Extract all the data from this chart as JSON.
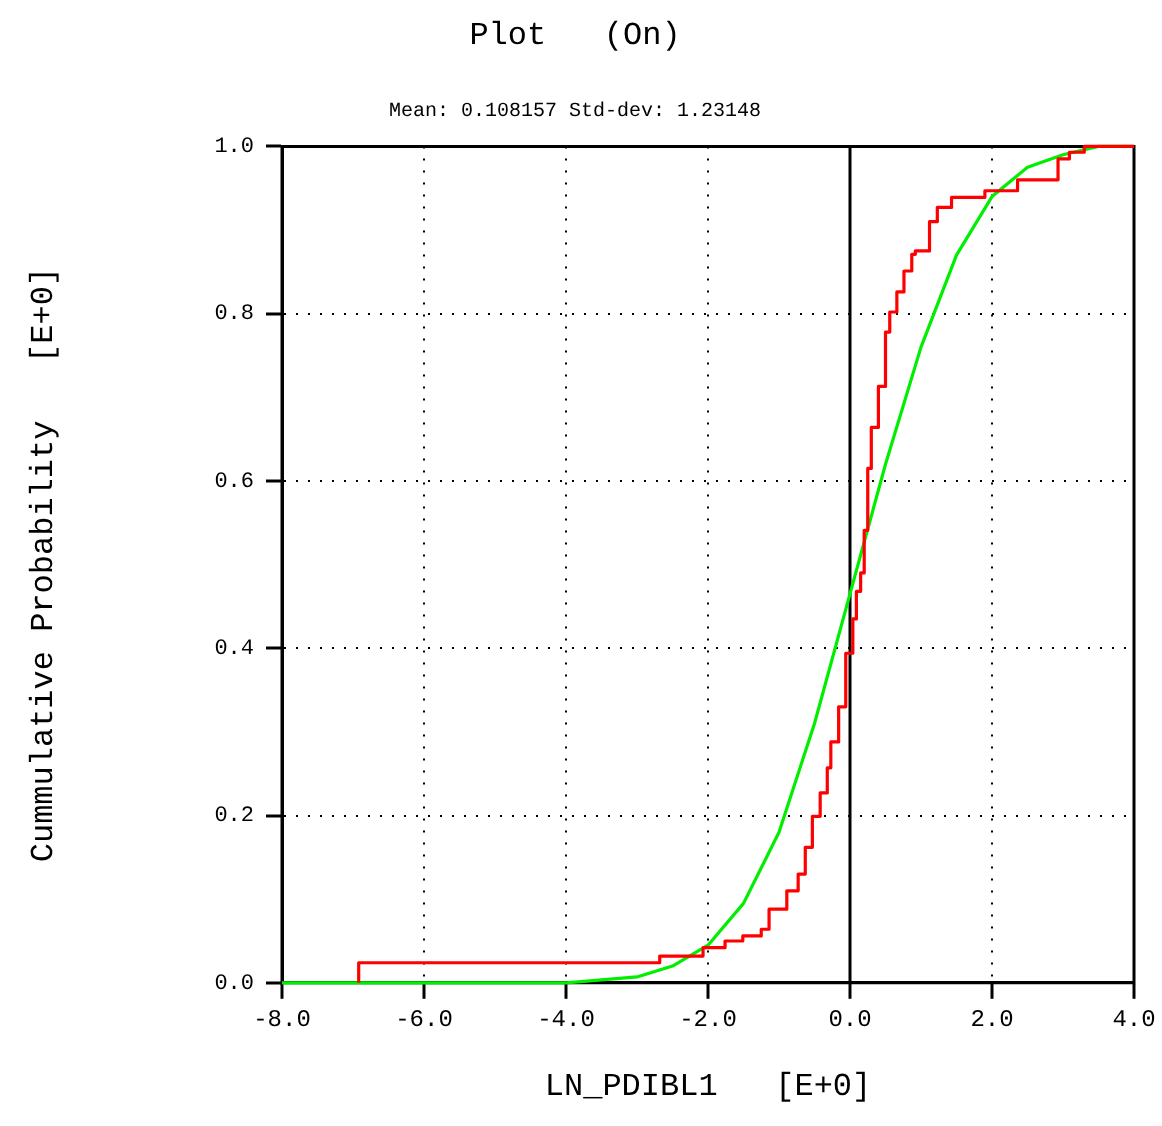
{
  "chart_data": {
    "type": "line",
    "title": "Plot   (On)",
    "subtitle": "Mean: 0.108157 Std-dev: 1.23148",
    "xlabel": "LN_PDIBL1   [E+0]",
    "ylabel": "Cummulative Probability   [E+0]",
    "xlim": [
      -8,
      4
    ],
    "xticks": [
      {
        "value": -8,
        "label": "-8.0"
      },
      {
        "value": -6,
        "label": "-6.0"
      },
      {
        "value": -4,
        "label": "-4.0"
      },
      {
        "value": -2,
        "label": "-2.0"
      },
      {
        "value": 0,
        "label": "0.0"
      },
      {
        "value": 2,
        "label": "2.0"
      },
      {
        "value": 4,
        "label": "4.0"
      }
    ],
    "ylim": [
      0,
      1
    ],
    "yticks": [
      {
        "value": 0,
        "label": "0.0"
      },
      {
        "value": 0.2,
        "label": "0.2"
      },
      {
        "value": 0.4,
        "label": "0.4"
      },
      {
        "value": 0.6,
        "label": "0.6"
      },
      {
        "value": 0.8,
        "label": "0.8"
      },
      {
        "value": 1,
        "label": "1.0"
      }
    ],
    "grid": true,
    "legend": false,
    "marker": "none",
    "ref_lines": [
      {
        "axis": "x",
        "value": 0,
        "color": "#000000"
      }
    ],
    "series": [
      {
        "type": "step",
        "color": "#ff0000",
        "x": [
          -6.92,
          -6.92,
          -2.68,
          -2.07,
          -1.76,
          -1.51,
          -1.25,
          -1.14,
          -0.89,
          -0.73,
          -0.63,
          -0.53,
          -0.42,
          -0.32,
          -0.27,
          -0.16,
          -0.06,
          0.04,
          0.09,
          0.15,
          0.2,
          0.25,
          0.3,
          0.4,
          0.5,
          0.56,
          0.66,
          0.76,
          0.87,
          0.92,
          1.12,
          1.23,
          1.43,
          1.9,
          2.36,
          2.93,
          3.09,
          3.3,
          3.5,
          4
        ],
        "values": [
          0,
          0.012,
          0.024,
          0.032,
          0.042,
          0.05,
          0.056,
          0.064,
          0.088,
          0.11,
          0.13,
          0.162,
          0.199,
          0.227,
          0.257,
          0.288,
          0.33,
          0.394,
          0.435,
          0.468,
          0.49,
          0.541,
          0.615,
          0.664,
          0.713,
          0.778,
          0.802,
          0.826,
          0.851,
          0.871,
          0.875,
          0.91,
          0.927,
          0.939,
          0.947,
          0.96,
          0.985,
          0.993,
          1,
          1
        ]
      },
      {
        "type": "line",
        "color": "#00ee00",
        "x": [
          -8,
          -4,
          -3,
          -2.5,
          -2,
          -1.5,
          -1,
          -0.5,
          0,
          0.5,
          1,
          1.5,
          2,
          2.5,
          3,
          3.5,
          4
        ],
        "values": [
          0,
          0,
          0.007,
          0.02,
          0.045,
          0.095,
          0.18,
          0.31,
          0.465,
          0.62,
          0.76,
          0.87,
          0.94,
          0.975,
          0.99,
          1,
          1
        ]
      }
    ]
  }
}
